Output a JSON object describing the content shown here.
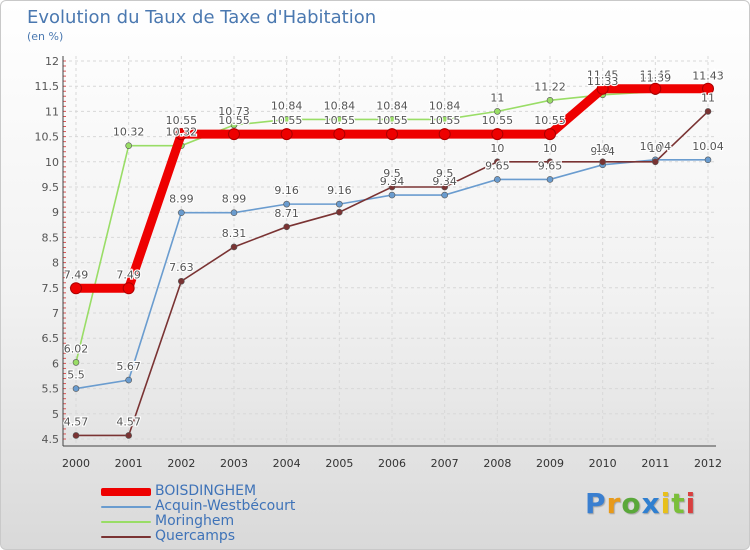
{
  "title": "Evolution du Taux de Taxe d'Habitation",
  "subtitle": "(en %)",
  "chart_data": {
    "type": "line",
    "title": "Evolution du Taux de Taxe d'Habitation",
    "ylabel": "(en %)",
    "xlabel": "",
    "ylim": [
      4.5,
      12
    ],
    "grid": true,
    "categories": [
      "2000",
      "2001",
      "2002",
      "2003",
      "2004",
      "2005",
      "2006",
      "2007",
      "2008",
      "2009",
      "2010",
      "2011",
      "2012"
    ],
    "yticks": [
      "4.5",
      "5",
      "5.5",
      "6",
      "6.5",
      "7",
      "7.5",
      "8",
      "8.5",
      "9",
      "9.5",
      "10",
      "10.5",
      "11",
      "11.5",
      "12"
    ],
    "series": [
      {
        "name": "BOISDINGHEM",
        "color": "#ee0000",
        "emphasis": true,
        "values": [
          7.49,
          7.49,
          10.55,
          10.55,
          10.55,
          10.55,
          10.55,
          10.55,
          10.55,
          10.55,
          11.45,
          11.45,
          11.45
        ],
        "labels": [
          "7.49",
          "7.49",
          "10.55",
          "10.55",
          "10.55",
          "10.55",
          "10.55",
          "10.55",
          "10.55",
          "10.55",
          "11.45",
          "11.45",
          "11.45"
        ]
      },
      {
        "name": "Acquin-Westbécourt",
        "color": "#6a9ccf",
        "values": [
          5.5,
          5.67,
          8.99,
          8.99,
          9.16,
          9.16,
          9.34,
          9.34,
          9.65,
          9.65,
          9.94,
          10.04,
          10.04
        ],
        "labels": [
          "5.5",
          "5.67",
          "8.99",
          "8.99",
          "9.16",
          "9.16",
          "9.34",
          "9.34",
          "9.65",
          "9.65",
          "9.94",
          "10.04",
          "10.04"
        ]
      },
      {
        "name": "Moringhem",
        "color": "#99dd66",
        "values": [
          6.02,
          10.32,
          10.32,
          10.73,
          10.84,
          10.84,
          10.84,
          10.84,
          11,
          11.22,
          11.33,
          11.39,
          11.43
        ],
        "labels": [
          "6.02",
          "10.32",
          "10.32",
          "10.73",
          "10.84",
          "10.84",
          "10.84",
          "10.84",
          "11",
          "11.22",
          "11.33",
          "11.39",
          "11.43"
        ]
      },
      {
        "name": "Quercamps",
        "color": "#7a3333",
        "values": [
          4.57,
          4.57,
          7.63,
          8.31,
          8.71,
          9,
          9.5,
          9.5,
          10,
          10,
          10,
          10,
          11
        ],
        "labels": [
          "4.57",
          "4.57",
          "7.63",
          "8.31",
          "8.71",
          "",
          "9.5",
          "9.5",
          "10",
          "10",
          "10",
          "10",
          "11"
        ]
      }
    ]
  },
  "legend": {
    "items": [
      {
        "label": "BOISDINGHEM",
        "color": "#ee0000"
      },
      {
        "label": "Acquin-Westbécourt",
        "color": "#6a9ccf"
      },
      {
        "label": "Moringhem",
        "color": "#99dd66"
      },
      {
        "label": "Quercamps",
        "color": "#7a3333"
      }
    ]
  },
  "logo": {
    "letters": [
      "P",
      "r",
      "o",
      "x",
      "i",
      "t",
      "i"
    ],
    "colors": [
      "#3a7fd0",
      "#e89a1a",
      "#5aa83a",
      "#2f7fd0",
      "#e8c01a",
      "#7bbf3a",
      "#d94040"
    ]
  }
}
